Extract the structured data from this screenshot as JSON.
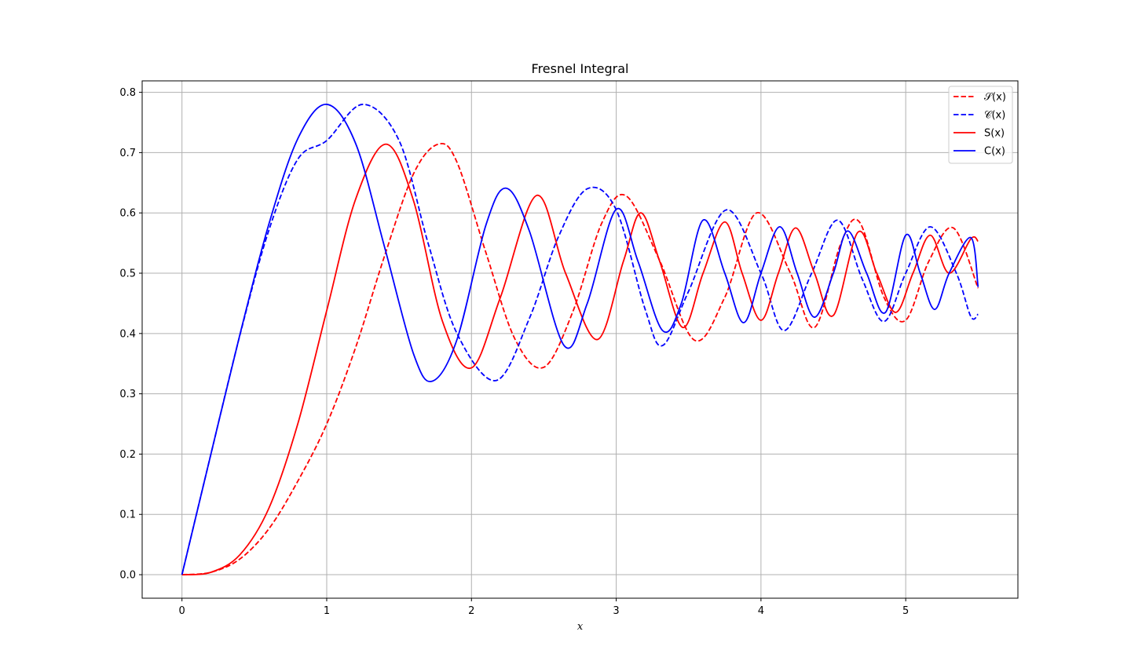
{
  "chart_data": {
    "type": "line",
    "title": "Fresnel Integral",
    "xlabel": "x",
    "ylabel": "",
    "xlim": [
      -0.275,
      5.775
    ],
    "ylim": [
      -0.039,
      0.819
    ],
    "xticks": [
      0,
      1,
      2,
      3,
      4,
      5
    ],
    "yticks": [
      0.0,
      0.1,
      0.2,
      0.3,
      0.4,
      0.5,
      0.6,
      0.7,
      0.8
    ],
    "grid": true,
    "legend_position": "top-right",
    "x_range": [
      0,
      5.5
    ],
    "series": [
      {
        "name": "𝒮(x)",
        "color": "#ff0000",
        "style": "dashed",
        "x": [
          0.0,
          0.2,
          0.4,
          0.6,
          0.8,
          1.0,
          1.2,
          1.4,
          1.6,
          1.77,
          1.9,
          2.1,
          2.3,
          2.5,
          2.7,
          2.9,
          3.07,
          3.3,
          3.54,
          3.75,
          3.97,
          4.2,
          4.37,
          4.55,
          4.68,
          4.85,
          5.0,
          5.16,
          5.33,
          5.5
        ],
        "values": [
          0.0,
          0.004,
          0.026,
          0.076,
          0.155,
          0.25,
          0.377,
          0.529,
          0.665,
          0.714,
          0.684,
          0.534,
          0.391,
          0.344,
          0.436,
          0.583,
          0.628,
          0.521,
          0.389,
          0.46,
          0.6,
          0.502,
          0.41,
          0.548,
          0.585,
          0.46,
          0.422,
          0.52,
          0.575,
          0.475
        ]
      },
      {
        "name": "𝒞(x)",
        "color": "#0000ff",
        "style": "dashed",
        "x": [
          0.0,
          0.2,
          0.4,
          0.6,
          0.8,
          1.0,
          1.25,
          1.5,
          1.7,
          1.9,
          2.17,
          2.4,
          2.6,
          2.8,
          3.0,
          3.2,
          3.32,
          3.5,
          3.76,
          4.0,
          4.16,
          4.35,
          4.53,
          4.7,
          4.85,
          5.0,
          5.17,
          5.35,
          5.45,
          5.5
        ],
        "values": [
          0.0,
          0.2,
          0.397,
          0.571,
          0.689,
          0.72,
          0.78,
          0.72,
          0.55,
          0.4,
          0.322,
          0.425,
          0.56,
          0.64,
          0.605,
          0.44,
          0.38,
          0.47,
          0.605,
          0.5,
          0.405,
          0.5,
          0.588,
          0.49,
          0.42,
          0.5,
          0.577,
          0.5,
          0.428,
          0.432
        ]
      },
      {
        "name": "S(x)",
        "color": "#ff0000",
        "style": "solid",
        "x": [
          0.0,
          0.2,
          0.4,
          0.6,
          0.8,
          1.0,
          1.2,
          1.41,
          1.6,
          1.8,
          2.0,
          2.2,
          2.45,
          2.65,
          2.87,
          3.05,
          3.17,
          3.3,
          3.46,
          3.6,
          3.75,
          3.87,
          4.0,
          4.12,
          4.24,
          4.37,
          4.5,
          4.67,
          4.8,
          4.93,
          5.05,
          5.17,
          5.3,
          5.45,
          5.5
        ],
        "values": [
          0.0,
          0.004,
          0.033,
          0.11,
          0.25,
          0.438,
          0.623,
          0.714,
          0.62,
          0.42,
          0.343,
          0.46,
          0.629,
          0.5,
          0.39,
          0.52,
          0.6,
          0.52,
          0.41,
          0.5,
          0.585,
          0.5,
          0.422,
          0.5,
          0.575,
          0.5,
          0.43,
          0.568,
          0.5,
          0.435,
          0.5,
          0.563,
          0.5,
          0.557,
          0.553
        ]
      },
      {
        "name": "C(x)",
        "color": "#0000ff",
        "style": "solid",
        "x": [
          0.0,
          0.2,
          0.4,
          0.6,
          0.8,
          1.0,
          1.2,
          1.4,
          1.6,
          1.73,
          1.9,
          2.1,
          2.24,
          2.4,
          2.64,
          2.8,
          3.0,
          3.15,
          3.32,
          3.45,
          3.6,
          3.75,
          3.88,
          4.0,
          4.13,
          4.25,
          4.37,
          4.5,
          4.6,
          4.73,
          4.86,
          5.0,
          5.1,
          5.2,
          5.3,
          5.45,
          5.5
        ],
        "values": [
          0.0,
          0.2,
          0.398,
          0.581,
          0.723,
          0.78,
          0.715,
          0.543,
          0.366,
          0.321,
          0.39,
          0.58,
          0.641,
          0.57,
          0.38,
          0.45,
          0.606,
          0.52,
          0.405,
          0.45,
          0.588,
          0.5,
          0.418,
          0.5,
          0.577,
          0.5,
          0.427,
          0.5,
          0.57,
          0.5,
          0.435,
          0.563,
          0.5,
          0.44,
          0.5,
          0.559,
          0.477
        ]
      }
    ]
  }
}
